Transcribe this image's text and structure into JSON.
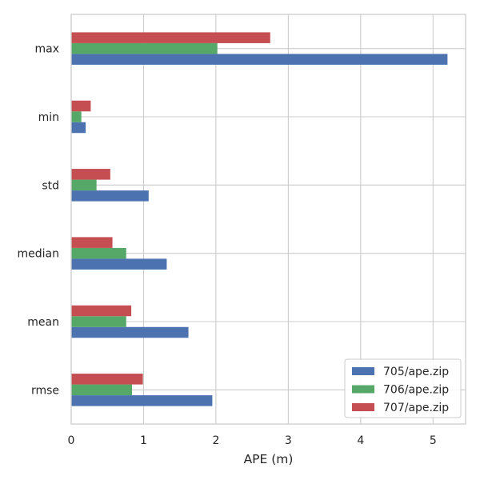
{
  "chart_data": {
    "type": "bar",
    "orientation": "horizontal",
    "title": "",
    "xlabel": "APE (m)",
    "ylabel": "",
    "xlim": [
      0,
      5.45
    ],
    "xticks": [
      0,
      1,
      2,
      3,
      4,
      5
    ],
    "grid": true,
    "legend_position": "bottom-right",
    "categories": [
      "rmse",
      "mean",
      "median",
      "std",
      "min",
      "max"
    ],
    "series": [
      {
        "name": "705/ape.zip",
        "color": "#4c72b0",
        "values": [
          1.95,
          1.62,
          1.32,
          1.07,
          0.2,
          5.2
        ]
      },
      {
        "name": "706/ape.zip",
        "color": "#55a868",
        "values": [
          0.84,
          0.76,
          0.76,
          0.35,
          0.14,
          2.02
        ]
      },
      {
        "name": "707/ape.zip",
        "color": "#c44e52",
        "values": [
          0.99,
          0.83,
          0.57,
          0.54,
          0.27,
          2.75
        ]
      }
    ]
  }
}
